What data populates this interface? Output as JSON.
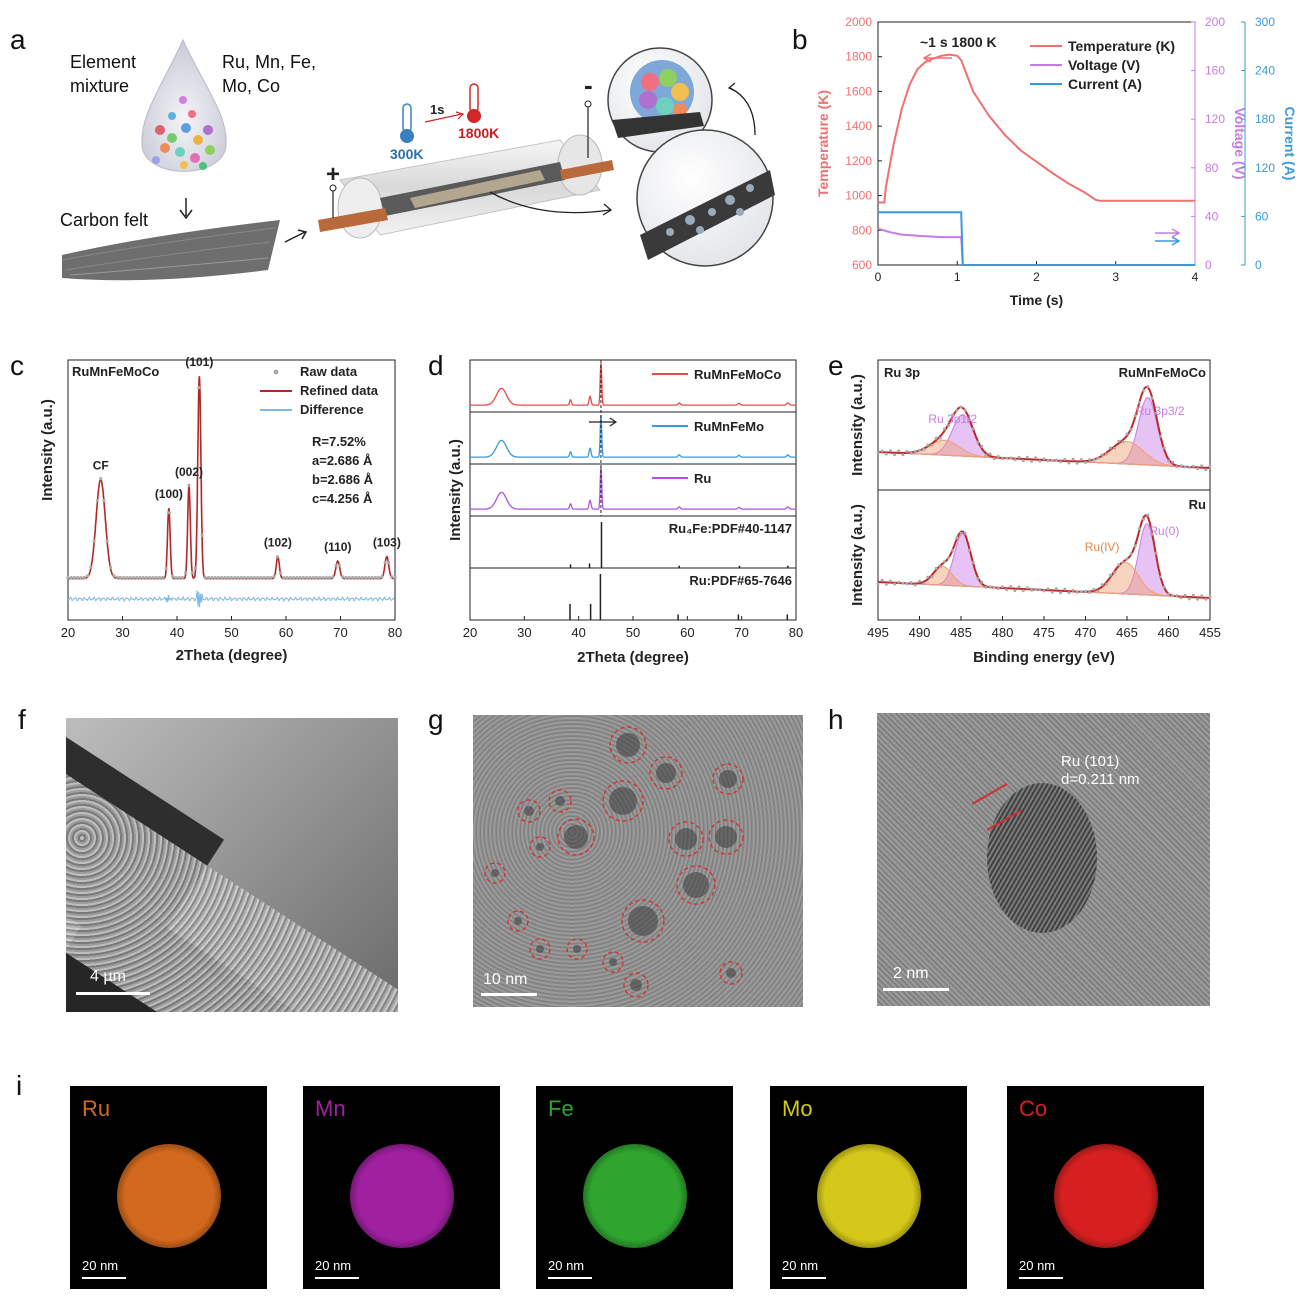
{
  "panels": {
    "a": "a",
    "b": "b",
    "c": "c",
    "d": "d",
    "e": "e",
    "f": "f",
    "g": "g",
    "h": "h",
    "i": "i"
  },
  "panel_a": {
    "element_mixture": "Element mixture",
    "elements": "Ru, Mn, Fe, Mo, Co",
    "carbon_felt": "Carbon felt",
    "plus": "+",
    "minus": "-",
    "time": "1s",
    "temp_low": "300K",
    "temp_high": "1800K"
  },
  "panel_f": {
    "scalebar": "4 µm"
  },
  "panel_g": {
    "scalebar": "10 nm"
  },
  "panel_h": {
    "scalebar": "2 nm",
    "lattice_label": "Ru (101)",
    "d_spacing": "d=0.211 nm"
  },
  "panel_i": {
    "maps": [
      {
        "element": "Ru",
        "color": "#d2691e",
        "scalebar": "20 nm"
      },
      {
        "element": "Mn",
        "color": "#a020a0",
        "scalebar": "20 nm"
      },
      {
        "element": "Fe",
        "color": "#2fa52f",
        "scalebar": "20 nm"
      },
      {
        "element": "Mo",
        "color": "#d6c81a",
        "scalebar": "20 nm"
      },
      {
        "element": "Co",
        "color": "#d62020",
        "scalebar": "20 nm"
      }
    ]
  },
  "chart_data": [
    {
      "panel": "b",
      "type": "line",
      "xlabel": "Time (s)",
      "xlim": [
        0,
        4
      ],
      "xticks": [
        0,
        1,
        2,
        3,
        4
      ],
      "annotation": "~1 s 1800 K",
      "axes": [
        {
          "label": "Temperature (K)",
          "ylim": [
            600,
            2000
          ],
          "ticks": [
            600,
            800,
            1000,
            1200,
            1400,
            1600,
            1800,
            2000
          ],
          "color": "#f07070"
        },
        {
          "label": "Voltage (V)",
          "ylim": [
            0,
            200
          ],
          "ticks": [
            0,
            40,
            80,
            120,
            160,
            200
          ],
          "color": "#c77be6"
        },
        {
          "label": "Current (A)",
          "ylim": [
            0,
            300
          ],
          "ticks": [
            0,
            60,
            120,
            180,
            240,
            300
          ],
          "color": "#3a9ad9"
        }
      ],
      "series": [
        {
          "name": "Temperature (K)",
          "color": "#f07070",
          "axis": 0,
          "points": [
            [
              0,
              960
            ],
            [
              0.08,
              960
            ],
            [
              0.1,
              1050
            ],
            [
              0.2,
              1300
            ],
            [
              0.3,
              1500
            ],
            [
              0.4,
              1640
            ],
            [
              0.5,
              1730
            ],
            [
              0.6,
              1770
            ],
            [
              0.7,
              1790
            ],
            [
              0.8,
              1805
            ],
            [
              0.9,
              1812
            ],
            [
              1.0,
              1805
            ],
            [
              1.05,
              1780
            ],
            [
              1.2,
              1600
            ],
            [
              1.4,
              1460
            ],
            [
              1.6,
              1350
            ],
            [
              1.8,
              1260
            ],
            [
              2.0,
              1195
            ],
            [
              2.2,
              1130
            ],
            [
              2.4,
              1070
            ],
            [
              2.6,
              1020
            ],
            [
              2.75,
              975
            ],
            [
              2.8,
              970
            ],
            [
              4.0,
              970
            ]
          ]
        },
        {
          "name": "Voltage (V)",
          "color": "#c77be6",
          "axis": 1,
          "points": [
            [
              0,
              30
            ],
            [
              0.15,
              27
            ],
            [
              0.3,
              25
            ],
            [
              0.5,
              24
            ],
            [
              0.8,
              23
            ],
            [
              1.05,
              23
            ],
            [
              1.07,
              0
            ],
            [
              4,
              0
            ]
          ]
        },
        {
          "name": "Current (A)",
          "color": "#3a9ad9",
          "axis": 2,
          "points": [
            [
              0,
              65
            ],
            [
              1.05,
              65
            ],
            [
              1.07,
              0
            ],
            [
              4,
              0
            ]
          ]
        }
      ]
    },
    {
      "panel": "c",
      "type": "line",
      "title": "RuMnFeMoCo",
      "xlabel": "2Theta (degree)",
      "ylabel": "Intensity (a.u.)",
      "xlim": [
        20,
        80
      ],
      "xticks": [
        20,
        30,
        40,
        50,
        60,
        70,
        80
      ],
      "legend": [
        "Raw data",
        "Refined data",
        "Difference"
      ],
      "annotations": [
        "R=7.52%",
        "a=2.686 Å",
        "b=2.686 Å",
        "c=4.256 Å"
      ],
      "peaks": [
        {
          "label": "CF",
          "x": 26
        },
        {
          "label": "(100)",
          "x": 38.5
        },
        {
          "label": "(002)",
          "x": 42.2
        },
        {
          "label": "(101)",
          "x": 44.1
        },
        {
          "label": "(102)",
          "x": 58.5
        },
        {
          "label": "(110)",
          "x": 69.5
        },
        {
          "label": "(103)",
          "x": 78.5
        }
      ]
    },
    {
      "panel": "d",
      "type": "line",
      "xlabel": "2Theta (degree)",
      "ylabel": "Intensity (a.u.)",
      "xlim": [
        20,
        80
      ],
      "xticks": [
        20,
        30,
        40,
        50,
        60,
        70,
        80
      ],
      "series": [
        {
          "name": "RuMnFeMoCo",
          "color": "#e84848"
        },
        {
          "name": "RuMnFeMo",
          "color": "#3a9ad9"
        },
        {
          "name": "Ru",
          "color": "#b152e0"
        }
      ],
      "references": [
        {
          "name": "Ru₄Fe:PDF#40-1147",
          "lines": [
            [
              38.5,
              0.08
            ],
            [
              42.0,
              0.1
            ],
            [
              44.2,
              1.0
            ],
            [
              58.5,
              0.05
            ],
            [
              69.6,
              0.05
            ],
            [
              78.5,
              0.05
            ]
          ]
        },
        {
          "name": "Ru:PDF#65-7646",
          "lines": [
            [
              38.4,
              0.35
            ],
            [
              42.2,
              0.35
            ],
            [
              44.0,
              1.0
            ],
            [
              58.3,
              0.12
            ],
            [
              69.4,
              0.12
            ],
            [
              78.4,
              0.12
            ]
          ]
        }
      ]
    },
    {
      "panel": "e",
      "type": "line",
      "xlabel": "Binding energy (eV)",
      "ylabel": "Intensity (a.u.)",
      "xlim": [
        495,
        455
      ],
      "xticks": [
        495,
        490,
        485,
        480,
        475,
        470,
        465,
        460,
        455
      ],
      "spectra": [
        {
          "sample": "RuMnFeMoCo",
          "region": "Ru 3p",
          "labels": [
            "Ru 3p1/2",
            "Ru 3p3/2"
          ]
        },
        {
          "sample": "Ru",
          "labels": [
            "Ru(IV)",
            "Ru(0)"
          ]
        }
      ]
    }
  ]
}
